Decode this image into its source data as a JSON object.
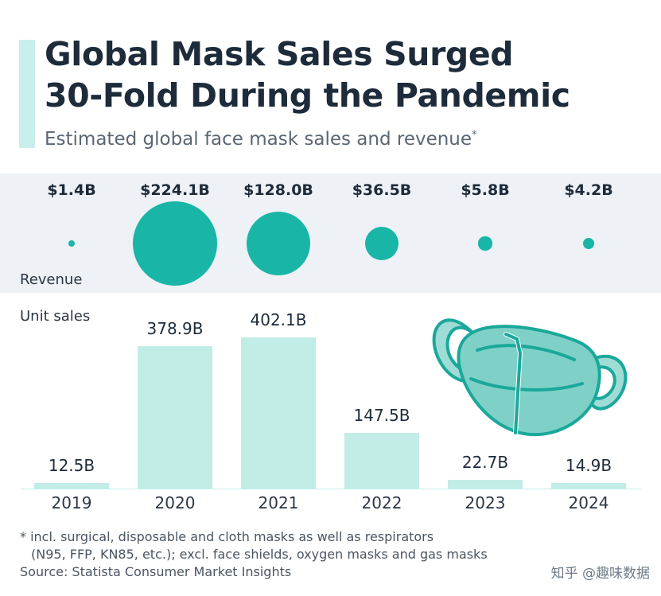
{
  "title_lines": [
    "Global Mask Sales Surged",
    "30-Fold During the Pandemic"
  ],
  "subtitle": "Estimated global face mask sales and revenue",
  "subtitle_marker": "*",
  "colors": {
    "revenue": "#19b6a8",
    "units": "#c2ede7",
    "band": "#eef1f5",
    "text": "#1d2b3a"
  },
  "chart_data": {
    "type": "bar",
    "categories": [
      "2019",
      "2020",
      "2021",
      "2022",
      "2023",
      "2024"
    ],
    "revenue_caption": "Revenue",
    "units_caption": "Unit sales",
    "revenue": {
      "values": [
        1.4,
        224.1,
        128.0,
        36.5,
        5.8,
        4.2
      ],
      "labels": [
        "$1.4B",
        "$224.1B",
        "$128.0B",
        "$36.5B",
        "$5.8B",
        "$4.2B"
      ],
      "mark": "bubble (area proportional to value)"
    },
    "units": {
      "values": [
        12.5,
        378.9,
        402.1,
        147.5,
        22.7,
        14.9
      ],
      "labels": [
        "12.5B",
        "378.9B",
        "402.1B",
        "147.5B",
        "22.7B",
        "14.9B"
      ],
      "mark": "bar"
    },
    "grid": false,
    "legend": "none"
  },
  "illustration_icon": "face-mask-icon",
  "footnote_lines": [
    "* incl. surgical, disposable and cloth masks as well as respirators",
    "(N95, FFP, KN85, etc.); excl. face shields, oxygen masks and gas masks"
  ],
  "source": "Source: Statista Consumer Market Insights",
  "watermark": "知乎 @趣味数据"
}
